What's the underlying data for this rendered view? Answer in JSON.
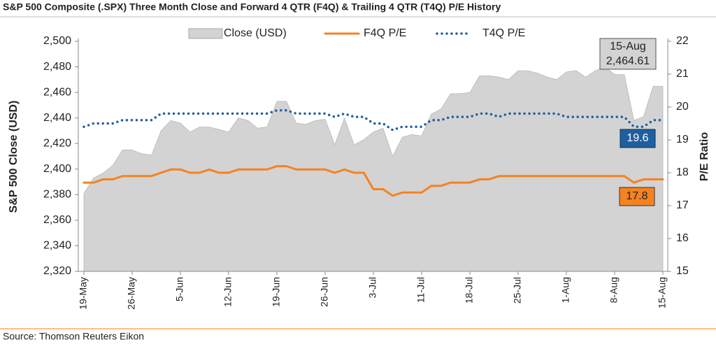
{
  "chart_data": {
    "type": "area-line",
    "title": "S&P 500 Composite (.SPX) Three Month Close and Forward 4 QTR (F4Q) & Trailing 4 QTR (T4Q) P/E History",
    "y_label": "S&P 500 Close (USD)",
    "y2_label": "P/E Ratio",
    "source": "Source: Thomson Reuters Eikon",
    "categories": [
      "19-May",
      null,
      null,
      null,
      null,
      "26-May",
      null,
      null,
      null,
      null,
      "5-Jun",
      null,
      null,
      null,
      null,
      "12-Jun",
      null,
      null,
      null,
      null,
      "19-Jun",
      null,
      null,
      null,
      null,
      "26-Jun",
      null,
      null,
      null,
      null,
      "3-Jul",
      null,
      null,
      null,
      null,
      "11-Jul",
      null,
      null,
      null,
      null,
      "18-Jul",
      null,
      null,
      null,
      null,
      "25-Jul",
      null,
      null,
      null,
      null,
      "1-Aug",
      null,
      null,
      null,
      null,
      "8-Aug",
      null,
      null,
      null,
      null,
      "15-Aug"
    ],
    "series": [
      {
        "name": "Close (USD)",
        "kind": "area",
        "color": "#d3d3d3",
        "values": [
          2381,
          2393,
          2397,
          2403,
          2415,
          2415,
          2412,
          2411,
          2430,
          2438,
          2436,
          2429,
          2433,
          2433,
          2431,
          2429,
          2440,
          2438,
          2432,
          2433,
          2453,
          2453,
          2436,
          2435,
          2438,
          2439,
          2419,
          2440,
          2419,
          2423,
          2429,
          2432,
          2410,
          2425,
          2427,
          2426,
          2443,
          2447,
          2459,
          2459,
          2460,
          2473,
          2473,
          2472,
          2470,
          2477,
          2477,
          2475,
          2472,
          2470,
          2476,
          2477,
          2472,
          2477,
          2480,
          2474,
          2474,
          2438,
          2441,
          2465,
          2464.61
        ]
      },
      {
        "name": "F4Q P/E",
        "kind": "line",
        "axis": "y2",
        "color": "#f58220",
        "values": [
          17.7,
          17.7,
          17.8,
          17.8,
          17.9,
          17.9,
          17.9,
          17.9,
          18.0,
          18.1,
          18.1,
          18.0,
          18.0,
          18.1,
          18.0,
          18.0,
          18.1,
          18.1,
          18.1,
          18.1,
          18.2,
          18.2,
          18.1,
          18.1,
          18.1,
          18.1,
          18.0,
          18.1,
          18.0,
          18.0,
          17.5,
          17.5,
          17.3,
          17.4,
          17.4,
          17.4,
          17.6,
          17.6,
          17.7,
          17.7,
          17.7,
          17.8,
          17.8,
          17.9,
          17.9,
          17.9,
          17.9,
          17.9,
          17.9,
          17.9,
          17.9,
          17.9,
          17.9,
          17.9,
          17.9,
          17.9,
          17.9,
          17.7,
          17.8,
          17.8,
          17.8
        ]
      },
      {
        "name": "T4Q P/E",
        "kind": "dotted",
        "axis": "y2",
        "color": "#1f5fa0",
        "values": [
          19.4,
          19.5,
          19.5,
          19.5,
          19.6,
          19.6,
          19.6,
          19.6,
          19.8,
          19.8,
          19.8,
          19.8,
          19.8,
          19.8,
          19.8,
          19.8,
          19.8,
          19.8,
          19.8,
          19.8,
          19.9,
          19.9,
          19.8,
          19.8,
          19.8,
          19.8,
          19.7,
          19.8,
          19.7,
          19.7,
          19.5,
          19.5,
          19.3,
          19.4,
          19.4,
          19.4,
          19.6,
          19.6,
          19.7,
          19.7,
          19.7,
          19.8,
          19.8,
          19.7,
          19.8,
          19.8,
          19.8,
          19.8,
          19.8,
          19.8,
          19.7,
          19.7,
          19.7,
          19.7,
          19.7,
          19.7,
          19.7,
          19.4,
          19.4,
          19.6,
          19.6
        ]
      }
    ],
    "annotations": [
      "15-Aug",
      "2,464.61",
      "19.6",
      "17.8"
    ],
    "ylim": [
      2320,
      2500
    ],
    "yticks": [
      {
        "value": 2320,
        "label": "2,320"
      },
      {
        "value": 2340,
        "label": "2,340"
      },
      {
        "value": 2360,
        "label": "2,360"
      },
      {
        "value": 2380,
        "label": "2,380"
      },
      {
        "value": 2400,
        "label": "2,400"
      },
      {
        "value": 2420,
        "label": "2,420"
      },
      {
        "value": 2440,
        "label": "2,440"
      },
      {
        "value": 2460,
        "label": "2,460"
      },
      {
        "value": 2480,
        "label": "2,480"
      },
      {
        "value": 2500,
        "label": "2,500"
      }
    ],
    "y2lim": [
      15,
      22
    ],
    "y2ticks": [
      15,
      16,
      17,
      18,
      19,
      20,
      21,
      22
    ]
  }
}
